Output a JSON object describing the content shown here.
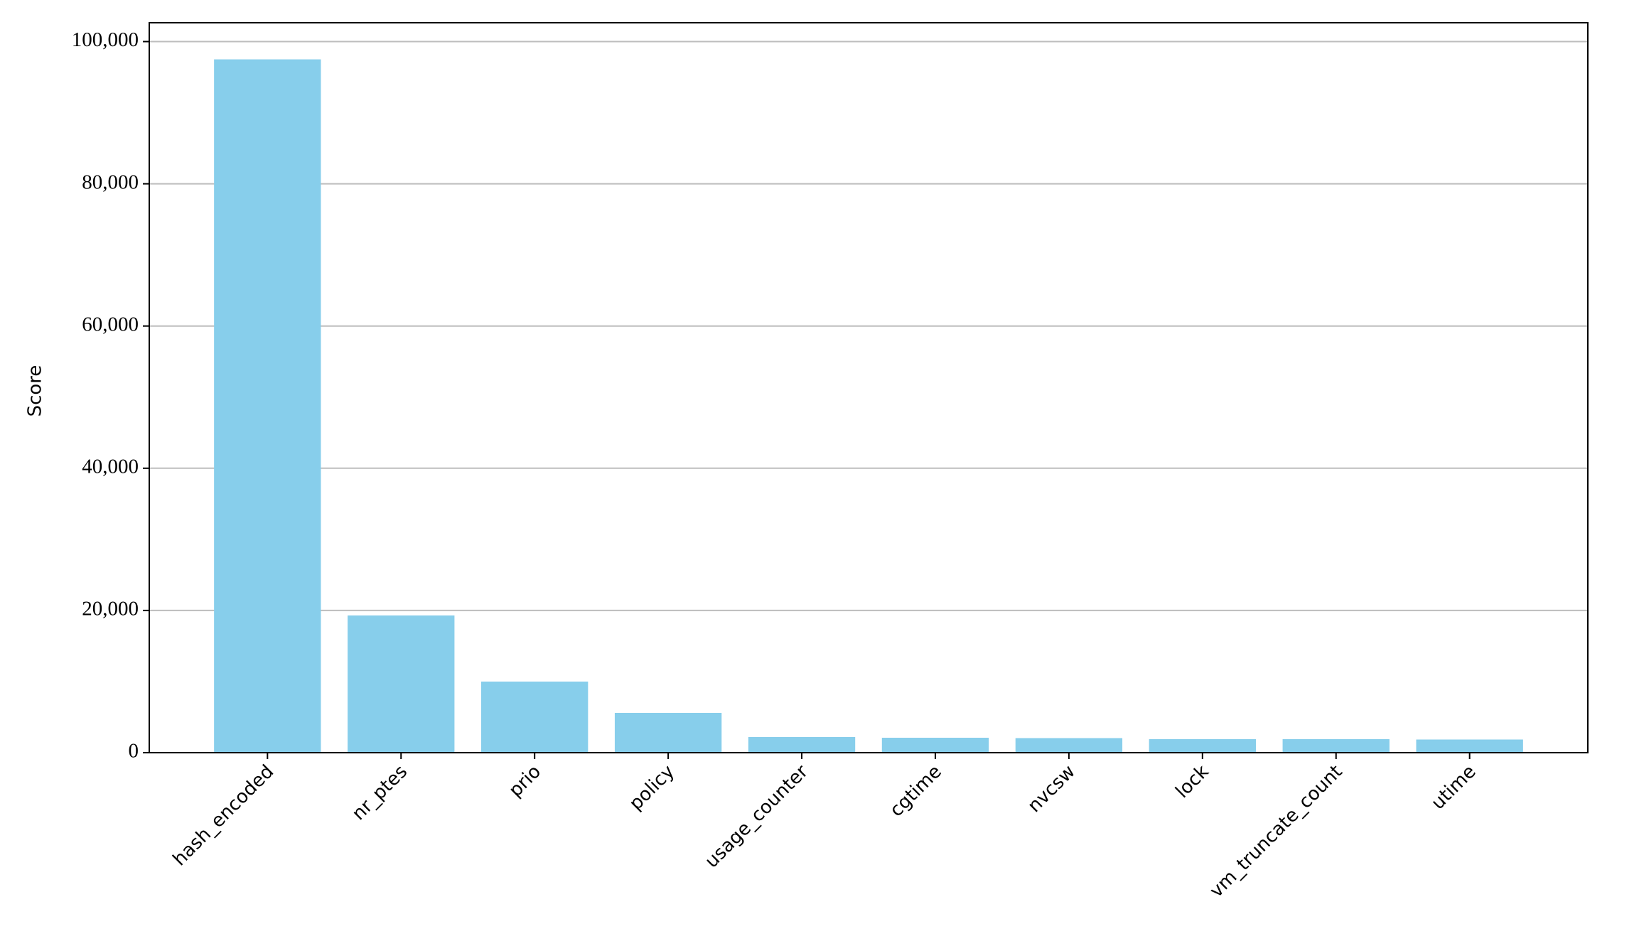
{
  "chart_data": {
    "type": "bar",
    "y_label": "Score",
    "categories": [
      "hash_encoded",
      "nr_ptes",
      "prio",
      "policy",
      "usage_counter",
      "cgtime",
      "nvcsw",
      "lock",
      "vm_truncate_count",
      "utime"
    ],
    "values": [
      97500,
      19300,
      10000,
      5600,
      2200,
      2100,
      2050,
      1900,
      1900,
      1850
    ],
    "color": "#87ceeb",
    "ylim": [
      0,
      102650
    ],
    "yticks": [
      0,
      {
        "value": 20000,
        "label": "20,000"
      },
      {
        "value": 40000,
        "label": "40,000"
      },
      {
        "value": 60000,
        "label": "60,000"
      },
      {
        "value": 80000,
        "label": "80,000"
      },
      {
        "value": 100000,
        "label": "100,000"
      }
    ],
    "grid": true
  }
}
